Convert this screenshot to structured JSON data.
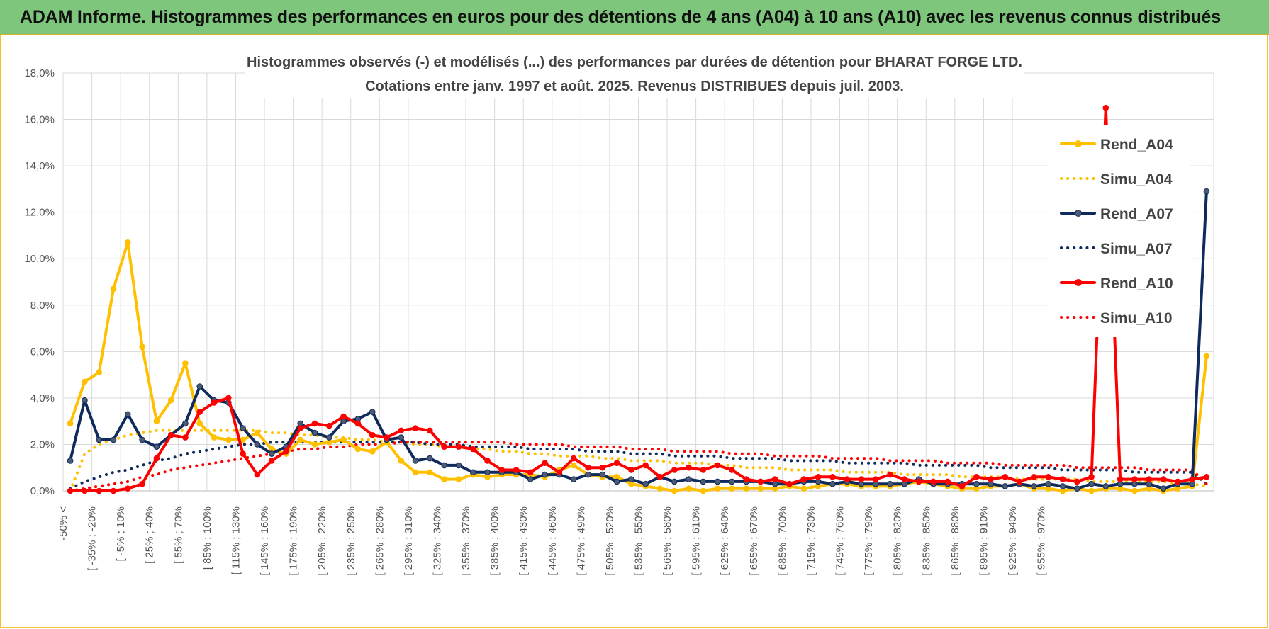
{
  "banner": {
    "title": "ADAM Informe. Histogrammes des performances en euros pour des détentions de 4 ans (A04) à 10 ans (A10) avec les revenus connus distribués"
  },
  "chart_data": {
    "type": "line",
    "title_lines": [
      "Histogrammes observés (-) et modélisés (...) des performances par durées de détention pour BHARAT FORGE LTD.",
      "Cotations entre janv. 1997 et août. 2025. Revenus DISTRIBUES depuis juil. 2003."
    ],
    "ylim": [
      0,
      18
    ],
    "yticks": [
      "0,0%",
      "2,0%",
      "4,0%",
      "6,0%",
      "8,0%",
      "10,0%",
      "12,0%",
      "14,0%",
      "16,0%",
      "18,0%"
    ],
    "grid": true,
    "legend_position": "top-right",
    "xtick_labels": [
      "-50% <",
      "[ -35% ; -20%",
      "[ -5% ; 10%",
      "[ 25% ; 40%",
      "[ 55% ; 70%",
      "[ 85% ; 100%",
      "[ 115% ; 130%",
      "[ 145% ; 160%",
      "[ 175% ; 190%",
      "[ 205% ; 220%",
      "[ 235% ; 250%",
      "[ 265% ; 280%",
      "[ 295% ; 310%",
      "[ 325% ; 340%",
      "[ 355% ; 370%",
      "[ 385% ; 400%",
      "[ 415% ; 430%",
      "[ 445% ; 460%",
      "[ 475% ; 490%",
      "[ 505% ; 520%",
      "[ 535% ; 550%",
      "[ 565% ; 580%",
      "[ 595% ; 610%",
      "[ 625% ; 640%",
      "[ 655% ; 670%",
      "[ 685% ; 700%",
      "[ 715% ; 730%",
      "[ 745% ; 760%",
      "[ 775% ; 790%",
      "[ 805% ; 820%",
      "[ 835% ; 850%",
      "[ 865% ; 880%",
      "[ 895% ; 910%",
      "[ 925% ; 940%",
      "[ 955% ; 970%"
    ],
    "series": [
      {
        "name": "Rend_A04",
        "style": "solid",
        "color": "#ffc000",
        "marker": true,
        "values": [
          2.9,
          4.7,
          5.1,
          8.7,
          10.7,
          6.2,
          3.0,
          3.9,
          5.5,
          2.9,
          2.3,
          2.2,
          2.2,
          2.5,
          1.8,
          1.6,
          2.2,
          2.0,
          2.1,
          2.2,
          1.8,
          1.7,
          2.1,
          1.3,
          0.8,
          0.8,
          0.5,
          0.5,
          0.7,
          0.6,
          0.7,
          0.7,
          0.7,
          0.6,
          0.9,
          1.1,
          0.7,
          0.6,
          0.6,
          0.3,
          0.2,
          0.1,
          0.0,
          0.1,
          0.0,
          0.1,
          0.1,
          0.1,
          0.1,
          0.1,
          0.2,
          0.1,
          0.2,
          0.3,
          0.3,
          0.2,
          0.2,
          0.2,
          0.3,
          0.4,
          0.3,
          0.2,
          0.1,
          0.1,
          0.2,
          0.2,
          0.3,
          0.1,
          0.1,
          0.0,
          0.1,
          0.0,
          0.1,
          0.1,
          0.0,
          0.1,
          0.0,
          0.1,
          0.2,
          5.8
        ]
      },
      {
        "name": "Simu_A04",
        "style": "dotted",
        "color": "#ffc000",
        "marker": false,
        "values": [
          0.0,
          1.6,
          2.0,
          2.2,
          2.4,
          2.5,
          2.6,
          2.6,
          2.6,
          2.6,
          2.6,
          2.6,
          2.6,
          2.6,
          2.5,
          2.5,
          2.4,
          2.4,
          2.3,
          2.3,
          2.2,
          2.2,
          2.1,
          2.1,
          2.0,
          2.0,
          1.9,
          1.9,
          1.8,
          1.8,
          1.7,
          1.7,
          1.6,
          1.6,
          1.5,
          1.5,
          1.5,
          1.4,
          1.4,
          1.3,
          1.3,
          1.3,
          1.2,
          1.2,
          1.2,
          1.1,
          1.1,
          1.0,
          1.0,
          1.0,
          0.9,
          0.9,
          0.9,
          0.9,
          0.8,
          0.8,
          0.8,
          0.8,
          0.7,
          0.7,
          0.7,
          0.7,
          0.6,
          0.6,
          0.6,
          0.6,
          0.5,
          0.5,
          0.5,
          0.5,
          0.5,
          0.4,
          0.4,
          0.4,
          0.4,
          0.4,
          0.4,
          0.3,
          0.3,
          0.2
        ]
      },
      {
        "name": "Rend_A07",
        "style": "solid",
        "color": "#0f2a5c",
        "marker": true,
        "values": [
          1.3,
          3.9,
          2.2,
          2.2,
          3.3,
          2.2,
          1.9,
          2.4,
          2.9,
          4.5,
          3.9,
          3.8,
          2.7,
          2.0,
          1.6,
          1.9,
          2.9,
          2.5,
          2.3,
          3.0,
          3.1,
          3.4,
          2.2,
          2.3,
          1.3,
          1.4,
          1.1,
          1.1,
          0.8,
          0.8,
          0.8,
          0.8,
          0.5,
          0.7,
          0.7,
          0.5,
          0.7,
          0.7,
          0.4,
          0.5,
          0.3,
          0.6,
          0.4,
          0.5,
          0.4,
          0.4,
          0.4,
          0.4,
          0.4,
          0.3,
          0.3,
          0.4,
          0.4,
          0.3,
          0.4,
          0.3,
          0.3,
          0.3,
          0.3,
          0.5,
          0.3,
          0.3,
          0.3,
          0.3,
          0.3,
          0.2,
          0.3,
          0.2,
          0.3,
          0.2,
          0.1,
          0.3,
          0.2,
          0.3,
          0.3,
          0.3,
          0.1,
          0.3,
          0.3,
          12.9
        ]
      },
      {
        "name": "Simu_A07",
        "style": "dotted",
        "color": "#0f2a5c",
        "marker": false,
        "values": [
          0.1,
          0.4,
          0.6,
          0.8,
          0.9,
          1.1,
          1.3,
          1.4,
          1.6,
          1.7,
          1.8,
          1.9,
          2.0,
          2.0,
          2.1,
          2.1,
          2.1,
          2.1,
          2.1,
          2.1,
          2.1,
          2.1,
          2.1,
          2.1,
          2.1,
          2.0,
          2.0,
          2.0,
          1.9,
          1.9,
          1.9,
          1.9,
          1.8,
          1.8,
          1.8,
          1.8,
          1.7,
          1.7,
          1.7,
          1.6,
          1.6,
          1.6,
          1.5,
          1.5,
          1.5,
          1.5,
          1.4,
          1.4,
          1.4,
          1.4,
          1.3,
          1.3,
          1.3,
          1.3,
          1.2,
          1.2,
          1.2,
          1.2,
          1.2,
          1.1,
          1.1,
          1.1,
          1.1,
          1.1,
          1.0,
          1.0,
          1.0,
          1.0,
          1.0,
          0.9,
          0.9,
          0.9,
          0.9,
          0.9,
          0.8,
          0.8,
          0.8,
          0.8,
          0.8,
          0.3
        ]
      },
      {
        "name": "Rend_A10",
        "style": "solid",
        "color": "#ff0000",
        "marker": true,
        "values": [
          0.0,
          0.0,
          0.0,
          0.0,
          0.1,
          0.3,
          1.4,
          2.4,
          2.3,
          3.4,
          3.8,
          4.0,
          1.6,
          0.7,
          1.3,
          1.7,
          2.7,
          2.9,
          2.8,
          3.2,
          2.9,
          2.4,
          2.3,
          2.6,
          2.7,
          2.6,
          1.9,
          1.9,
          1.8,
          1.3,
          0.9,
          0.9,
          0.8,
          1.2,
          0.8,
          1.4,
          1.0,
          1.0,
          1.2,
          0.9,
          1.1,
          0.6,
          0.9,
          1.0,
          0.9,
          1.1,
          0.9,
          0.5,
          0.4,
          0.5,
          0.3,
          0.5,
          0.6,
          0.6,
          0.5,
          0.5,
          0.5,
          0.7,
          0.5,
          0.4,
          0.4,
          0.4,
          0.2,
          0.6,
          0.5,
          0.6,
          0.4,
          0.6,
          0.6,
          0.5,
          0.4,
          0.6,
          16.5,
          0.5,
          0.5,
          0.5,
          0.5,
          0.4,
          0.5,
          0.6
        ]
      },
      {
        "name": "Simu_A10",
        "style": "dotted",
        "color": "#ff0000",
        "marker": false,
        "values": [
          0.0,
          0.1,
          0.2,
          0.3,
          0.4,
          0.6,
          0.7,
          0.9,
          1.0,
          1.1,
          1.2,
          1.3,
          1.4,
          1.5,
          1.6,
          1.7,
          1.8,
          1.8,
          1.9,
          1.9,
          2.0,
          2.0,
          2.0,
          2.1,
          2.1,
          2.1,
          2.1,
          2.1,
          2.1,
          2.1,
          2.1,
          2.0,
          2.0,
          2.0,
          2.0,
          1.9,
          1.9,
          1.9,
          1.9,
          1.8,
          1.8,
          1.8,
          1.7,
          1.7,
          1.7,
          1.7,
          1.6,
          1.6,
          1.6,
          1.5,
          1.5,
          1.5,
          1.5,
          1.4,
          1.4,
          1.4,
          1.4,
          1.3,
          1.3,
          1.3,
          1.3,
          1.2,
          1.2,
          1.2,
          1.2,
          1.1,
          1.1,
          1.1,
          1.1,
          1.1,
          1.0,
          1.0,
          1.0,
          1.0,
          1.0,
          0.9,
          0.9,
          0.9,
          0.9,
          0.3
        ]
      }
    ]
  }
}
